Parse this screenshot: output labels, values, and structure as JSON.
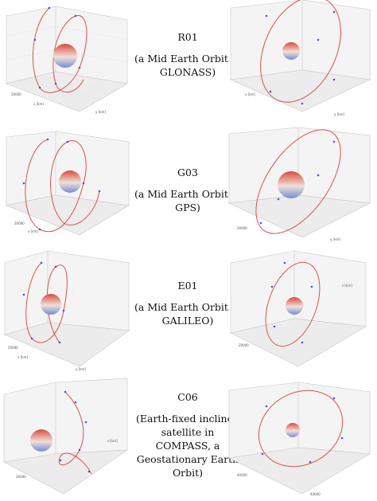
{
  "figure": {
    "rows": [
      {
        "code": "R01",
        "description": "(a Mid Earth Orbit in GLONASS)"
      },
      {
        "code": "G03",
        "description": "(a Mid Earth Orbit in GPS)"
      },
      {
        "code": "E01",
        "description": "(a Mid Earth Orbit in GALILEO)"
      },
      {
        "code": "C06",
        "description": "(Earth-fixed inclined satellite in COMPASS, a Geostationary Earth Orbit)"
      }
    ],
    "colors": {
      "orbit_line": "#e0504a",
      "sample_points": "#5555d0",
      "earth_warm": "#d94b3b",
      "earth_cool": "#6f8fd6",
      "pane_edge": "#c8c8c8"
    },
    "tick_labels": {
      "x": "x [km]",
      "y": "y [km]",
      "z": "z [km]",
      "v20000": "20000",
      "v40000": "40000"
    }
  }
}
